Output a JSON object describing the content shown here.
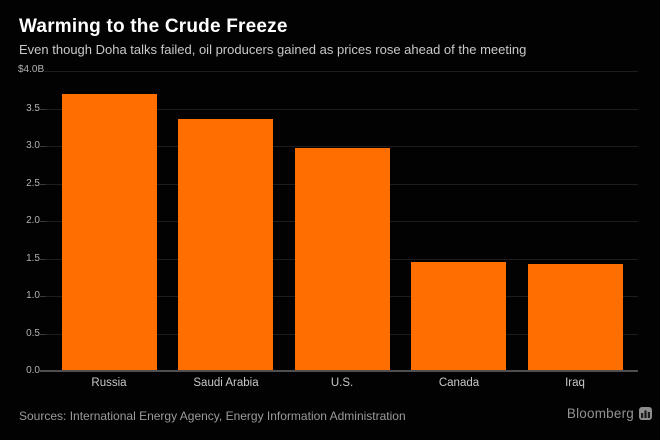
{
  "header": {
    "title": "Warming to the Crude Freeze",
    "subtitle": "Even though Doha talks failed, oil producers gained as prices rose ahead of the meeting"
  },
  "footer": {
    "sources": "Sources: International Energy Agency, Energy Information Administration",
    "brand": "Bloomberg"
  },
  "colors": {
    "background": "#000000",
    "bar": "#ff6e00",
    "gridline": "#1d1d1d",
    "baseline": "#4f4f4f",
    "title_text": "#ffffff",
    "subtitle_text": "#c9c9c9",
    "axis_text": "#b2b2b2",
    "category_text": "#c8c8c8",
    "footer_text": "#9b9b9b"
  },
  "chart_data": {
    "type": "bar",
    "title": "Warming to the Crude Freeze",
    "subtitle": "Even though Doha talks failed, oil producers gained as prices rose ahead of the meeting",
    "categories": [
      "Russia",
      "Saudi Arabia",
      "U.S.",
      "Canada",
      "Iraq"
    ],
    "values": [
      3.69,
      3.36,
      2.97,
      1.45,
      1.43
    ],
    "unit": "billions of USD",
    "xlabel": "",
    "ylabel": "",
    "ylim": [
      0.0,
      4.0
    ],
    "ytick_step": 0.5,
    "ytick_labels": [
      "0.0",
      "0.5",
      "1.0",
      "1.5",
      "2.0",
      "2.5",
      "3.0",
      "3.5"
    ],
    "ytop_label": "$4.0B",
    "grid": true,
    "legend_position": "none"
  }
}
